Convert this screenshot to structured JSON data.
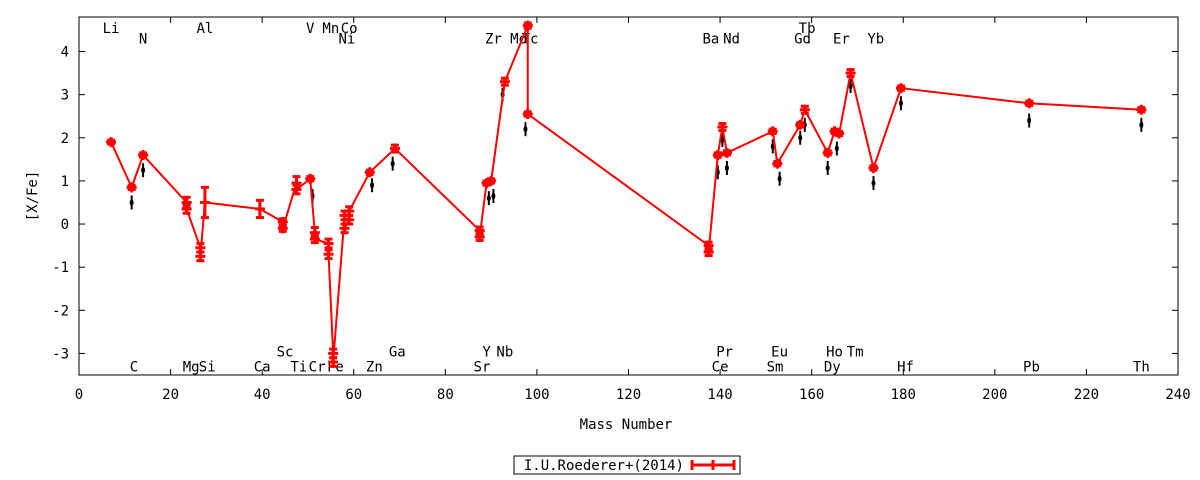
{
  "chart_data": {
    "type": "line",
    "xlabel": "Mass Number",
    "ylabel": "[X/Fe]",
    "xlim": [
      0,
      240
    ],
    "ylim": [
      -3.5,
      4.8
    ],
    "x_ticks": [
      0,
      20,
      40,
      60,
      80,
      100,
      120,
      140,
      160,
      180,
      200,
      220,
      240
    ],
    "y_ticks": [
      -3,
      -2,
      -1,
      0,
      1,
      2,
      3,
      4
    ],
    "grid": false,
    "legend_position": "bottom-center",
    "colors": {
      "series": "#ff0000",
      "errorbar": "#000000"
    },
    "series": [
      {
        "name": "I.U.Roederer+(2014)",
        "points": [
          {
            "x": 7,
            "y": 1.9,
            "err": 0.03
          },
          {
            "x": 11.5,
            "y": 0.85,
            "err": 0.05
          },
          {
            "x": 14,
            "y": 1.6,
            "err": 0.05
          },
          {
            "x": 23.5,
            "y": 0.5,
            "err": 0.12
          },
          {
            "x": 23.5,
            "y": 0.35,
            "err": 0.1
          },
          {
            "x": 26.5,
            "y": -0.55,
            "err": 0.1
          },
          {
            "x": 26.5,
            "y": -0.75,
            "err": 0.1
          },
          {
            "x": 27.5,
            "y": 0.5,
            "err": 0.35
          },
          {
            "x": 39.5,
            "y": 0.35,
            "err": 0.2
          },
          {
            "x": 44.5,
            "y": 0.05,
            "err": 0.07
          },
          {
            "x": 44.5,
            "y": -0.1,
            "err": 0.07
          },
          {
            "x": 47.5,
            "y": 0.95,
            "err": 0.15
          },
          {
            "x": 47.5,
            "y": 0.8,
            "err": 0.1
          },
          {
            "x": 50.5,
            "y": 1.05,
            "err": 0.05
          },
          {
            "x": 51.5,
            "y": -0.2,
            "err": 0.12
          },
          {
            "x": 51.5,
            "y": -0.35,
            "err": 0.08
          },
          {
            "x": 54.5,
            "y": -0.45,
            "err": 0.1
          },
          {
            "x": 54.5,
            "y": -0.7,
            "err": 0.1
          },
          {
            "x": 55.5,
            "y": -3.0,
            "err": 0.1
          },
          {
            "x": 55.5,
            "y": -3.2,
            "err": 0.1
          },
          {
            "x": 58,
            "y": 0.2,
            "err": 0.1
          },
          {
            "x": 58,
            "y": -0.1,
            "err": 0.1
          },
          {
            "x": 59,
            "y": 0.1,
            "err": 0.1
          },
          {
            "x": 59,
            "y": 0.3,
            "err": 0.1
          },
          {
            "x": 63.5,
            "y": 1.2,
            "err": 0.05
          },
          {
            "x": 69,
            "y": 1.75,
            "err": 0.08
          },
          {
            "x": 87.5,
            "y": -0.15,
            "err": 0.08
          },
          {
            "x": 87.5,
            "y": -0.3,
            "err": 0.08
          },
          {
            "x": 89,
            "y": 0.95,
            "err": 0.05
          },
          {
            "x": 90,
            "y": 1.0,
            "err": 0.05
          },
          {
            "x": 93,
            "y": 3.3,
            "err": 0.08
          },
          {
            "x": 98,
            "y": 4.6,
            "err": 0.06
          },
          {
            "x": 98,
            "y": 2.55,
            "err": 0.05
          },
          {
            "x": 137.5,
            "y": -0.5,
            "err": 0.08
          },
          {
            "x": 137.5,
            "y": -0.65,
            "err": 0.08
          },
          {
            "x": 139.5,
            "y": 1.6,
            "err": 0.05
          },
          {
            "x": 140.5,
            "y": 2.25,
            "err": 0.08
          },
          {
            "x": 141.5,
            "y": 1.65,
            "err": 0.05
          },
          {
            "x": 151.5,
            "y": 2.15,
            "err": 0.05
          },
          {
            "x": 152.5,
            "y": 1.4,
            "err": 0.05
          },
          {
            "x": 157.5,
            "y": 2.3,
            "err": 0.05
          },
          {
            "x": 158.5,
            "y": 2.65,
            "err": 0.08
          },
          {
            "x": 163.5,
            "y": 1.65,
            "err": 0.05
          },
          {
            "x": 165,
            "y": 2.15,
            "err": 0.05
          },
          {
            "x": 166,
            "y": 2.1,
            "err": 0.05
          },
          {
            "x": 168.5,
            "y": 3.5,
            "err": 0.08
          },
          {
            "x": 173.5,
            "y": 1.3,
            "err": 0.05
          },
          {
            "x": 179.5,
            "y": 3.15,
            "err": 0.05
          },
          {
            "x": 207.5,
            "y": 2.8,
            "err": 0.05
          },
          {
            "x": 232,
            "y": 2.65,
            "err": 0.05
          }
        ]
      }
    ],
    "secondary_points": [
      {
        "x": 11.5,
        "y": 0.5
      },
      {
        "x": 14,
        "y": 1.25
      },
      {
        "x": 51,
        "y": 0.65
      },
      {
        "x": 64,
        "y": 0.9
      },
      {
        "x": 68.5,
        "y": 1.4
      },
      {
        "x": 89.5,
        "y": 0.6
      },
      {
        "x": 90.5,
        "y": 0.65
      },
      {
        "x": 92.5,
        "y": 3.0
      },
      {
        "x": 97.5,
        "y": 2.2
      },
      {
        "x": 139.5,
        "y": 1.2
      },
      {
        "x": 140.5,
        "y": 1.95
      },
      {
        "x": 141.5,
        "y": 1.3
      },
      {
        "x": 151.5,
        "y": 1.8
      },
      {
        "x": 153,
        "y": 1.05
      },
      {
        "x": 157.5,
        "y": 2.0
      },
      {
        "x": 158.5,
        "y": 2.3
      },
      {
        "x": 163.5,
        "y": 1.3
      },
      {
        "x": 165.5,
        "y": 1.75
      },
      {
        "x": 168.5,
        "y": 3.2
      },
      {
        "x": 173.5,
        "y": 0.95
      },
      {
        "x": 179.5,
        "y": 2.8
      },
      {
        "x": 207.5,
        "y": 2.4
      },
      {
        "x": 232,
        "y": 2.3
      }
    ],
    "element_labels": [
      {
        "text": "Li",
        "x": 7,
        "y": 4.55
      },
      {
        "text": "N",
        "x": 14,
        "y": 4.3
      },
      {
        "text": "Al",
        "x": 27.5,
        "y": 4.55
      },
      {
        "text": "V",
        "x": 50.5,
        "y": 4.55
      },
      {
        "text": "Mn",
        "x": 55,
        "y": 4.55
      },
      {
        "text": "Co",
        "x": 59,
        "y": 4.55
      },
      {
        "text": "Ni",
        "x": 58.5,
        "y": 4.3
      },
      {
        "text": "Zr",
        "x": 90.5,
        "y": 4.3
      },
      {
        "text": "Mo",
        "x": 96,
        "y": 4.3
      },
      {
        "text": "Tc",
        "x": 98.5,
        "y": 4.3
      },
      {
        "text": "Ba",
        "x": 138,
        "y": 4.3
      },
      {
        "text": "Nd",
        "x": 142.5,
        "y": 4.3
      },
      {
        "text": "Tb",
        "x": 159,
        "y": 4.55
      },
      {
        "text": "Gd",
        "x": 158,
        "y": 4.3
      },
      {
        "text": "Er",
        "x": 166.5,
        "y": 4.3
      },
      {
        "text": "Yb",
        "x": 174,
        "y": 4.3
      },
      {
        "text": "C",
        "x": 12,
        "y": -3.3
      },
      {
        "text": "Mg",
        "x": 24.5,
        "y": -3.3
      },
      {
        "text": "Si",
        "x": 28,
        "y": -3.3
      },
      {
        "text": "Ca",
        "x": 40,
        "y": -3.3
      },
      {
        "text": "Sc",
        "x": 45,
        "y": -2.95
      },
      {
        "text": "Ti",
        "x": 48,
        "y": -3.3
      },
      {
        "text": "Cr",
        "x": 52,
        "y": -3.3
      },
      {
        "text": "Fe",
        "x": 56,
        "y": -3.3
      },
      {
        "text": "Zn",
        "x": 64.5,
        "y": -3.3
      },
      {
        "text": "Ga",
        "x": 69.5,
        "y": -2.95
      },
      {
        "text": "Y",
        "x": 89,
        "y": -2.95
      },
      {
        "text": "Nb",
        "x": 93,
        "y": -2.95
      },
      {
        "text": "Sr",
        "x": 88,
        "y": -3.3
      },
      {
        "text": "Pr",
        "x": 141,
        "y": -2.95
      },
      {
        "text": "Ce",
        "x": 140,
        "y": -3.3
      },
      {
        "text": "Eu",
        "x": 153,
        "y": -2.95
      },
      {
        "text": "Sm",
        "x": 152,
        "y": -3.3
      },
      {
        "text": "Ho",
        "x": 165,
        "y": -2.95
      },
      {
        "text": "Tm",
        "x": 169.5,
        "y": -2.95
      },
      {
        "text": "Dy",
        "x": 164.5,
        "y": -3.3
      },
      {
        "text": "Hf",
        "x": 180.5,
        "y": -3.3
      },
      {
        "text": "Pb",
        "x": 208,
        "y": -3.3
      },
      {
        "text": "Th",
        "x": 232,
        "y": -3.3
      }
    ]
  }
}
